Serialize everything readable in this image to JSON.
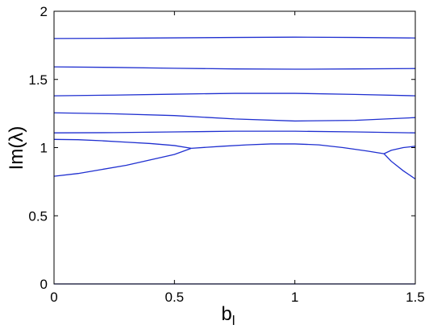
{
  "chart_data": {
    "type": "line",
    "xlabel": "b",
    "xlabel_subscript": "l",
    "ylabel": "Im(λ)",
    "xlim": [
      0,
      1.5
    ],
    "ylim": [
      0,
      2
    ],
    "xticks": [
      0,
      0.5,
      1,
      1.5
    ],
    "yticks": [
      0,
      0.5,
      1,
      1.5,
      2
    ],
    "grid": false,
    "series": [
      {
        "color": "#1f2fd0",
        "x": [
          0,
          0.25,
          0.5,
          0.75,
          1,
          1.25,
          1.5
        ],
        "values": [
          1.8,
          1.802,
          1.805,
          1.808,
          1.81,
          1.808,
          1.804
        ]
      },
      {
        "color": "#1f2fd0",
        "x": [
          0,
          0.25,
          0.5,
          0.75,
          1,
          1.25,
          1.5
        ],
        "values": [
          1.592,
          1.588,
          1.582,
          1.577,
          1.575,
          1.577,
          1.58
        ]
      },
      {
        "color": "#1f2fd0",
        "x": [
          0,
          0.25,
          0.5,
          0.75,
          1,
          1.25,
          1.5
        ],
        "values": [
          1.38,
          1.385,
          1.392,
          1.398,
          1.398,
          1.39,
          1.38
        ]
      },
      {
        "color": "#1f2fd0",
        "x": [
          0,
          0.25,
          0.5,
          0.75,
          1,
          1.25,
          1.5
        ],
        "values": [
          1.255,
          1.248,
          1.235,
          1.21,
          1.195,
          1.2,
          1.22
        ]
      },
      {
        "color": "#1f2fd0",
        "x": [
          0,
          0.25,
          0.5,
          0.75,
          1,
          1.25,
          1.5
        ],
        "values": [
          1.108,
          1.11,
          1.115,
          1.12,
          1.12,
          1.115,
          1.108
        ]
      },
      {
        "color": "#1f2fd0",
        "x": [
          0,
          0.1,
          0.2,
          0.3,
          0.4,
          0.5,
          0.57
        ],
        "values": [
          1.06,
          1.058,
          1.05,
          1.04,
          1.03,
          1.015,
          0.995
        ]
      },
      {
        "color": "#1f2fd0",
        "x": [
          0,
          0.1,
          0.2,
          0.3,
          0.4,
          0.5,
          0.57
        ],
        "values": [
          0.79,
          0.81,
          0.84,
          0.87,
          0.91,
          0.95,
          0.995
        ]
      },
      {
        "color": "#1f2fd0",
        "x": [
          0.57,
          0.7,
          0.8,
          0.9,
          1,
          1.1,
          1.2,
          1.3,
          1.37
        ],
        "values": [
          0.995,
          1.01,
          1.02,
          1.027,
          1.027,
          1.02,
          1.0,
          0.975,
          0.955
        ]
      },
      {
        "color": "#1f2fd0",
        "x": [
          1.37,
          1.4,
          1.45,
          1.5
        ],
        "values": [
          0.955,
          0.98,
          1.0,
          1.01
        ]
      },
      {
        "color": "#1f2fd0",
        "x": [
          1.37,
          1.4,
          1.45,
          1.5
        ],
        "values": [
          0.955,
          0.9,
          0.83,
          0.77
        ]
      },
      {
        "color": "#1f2fd0",
        "x": [
          0,
          1.5
        ],
        "values": [
          0,
          0
        ]
      }
    ]
  }
}
